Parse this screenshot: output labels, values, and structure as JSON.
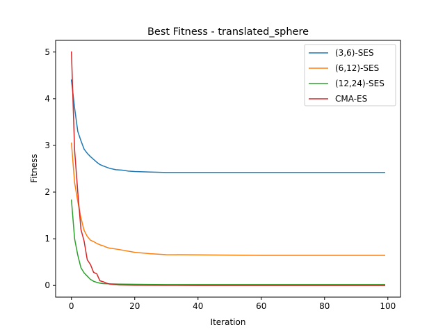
{
  "chart_data": {
    "type": "line",
    "title": "Best Fitness - translated_sphere",
    "xlabel": "Iteration",
    "ylabel": "Fitness",
    "xlim": [
      -5,
      104
    ],
    "ylim": [
      -0.25,
      5.25
    ],
    "xticks": [
      0,
      20,
      40,
      60,
      80,
      100
    ],
    "yticks": [
      0,
      1,
      2,
      3,
      4,
      5
    ],
    "grid": false,
    "legend_position": "top-right",
    "series": [
      {
        "name": "(3,6)-SES",
        "color": "#1f77b4",
        "x": [
          0,
          1,
          2,
          3,
          4,
          5,
          6,
          7,
          8,
          9,
          10,
          12,
          14,
          16,
          18,
          20,
          25,
          30,
          40,
          50,
          60,
          70,
          80,
          90,
          99
        ],
        "y": [
          4.4,
          3.8,
          3.3,
          3.1,
          2.92,
          2.83,
          2.76,
          2.7,
          2.64,
          2.59,
          2.56,
          2.51,
          2.48,
          2.47,
          2.45,
          2.44,
          2.43,
          2.42,
          2.42,
          2.42,
          2.42,
          2.42,
          2.42,
          2.42,
          2.42
        ]
      },
      {
        "name": "(6,12)-SES",
        "color": "#ff7f0e",
        "x": [
          0,
          1,
          2,
          3,
          4,
          5,
          6,
          7,
          8,
          9,
          10,
          11,
          12,
          15,
          20,
          25,
          30,
          40,
          50,
          60,
          70,
          80,
          90,
          99
        ],
        "y": [
          3.05,
          2.2,
          1.8,
          1.45,
          1.18,
          1.05,
          0.97,
          0.94,
          0.9,
          0.87,
          0.85,
          0.82,
          0.8,
          0.77,
          0.71,
          0.68,
          0.66,
          0.655,
          0.65,
          0.645,
          0.645,
          0.645,
          0.645,
          0.645
        ]
      },
      {
        "name": "(12,24)-SES",
        "color": "#2ca02c",
        "x": [
          0,
          1,
          2,
          3,
          4,
          5,
          6,
          7,
          8,
          9,
          10,
          12,
          15,
          20,
          30,
          40,
          60,
          80,
          99
        ],
        "y": [
          1.83,
          1.0,
          0.65,
          0.38,
          0.27,
          0.2,
          0.13,
          0.09,
          0.065,
          0.05,
          0.04,
          0.035,
          0.03,
          0.025,
          0.02,
          0.02,
          0.02,
          0.02,
          0.02
        ]
      },
      {
        "name": "CMA-ES",
        "color": "#d62728",
        "x": [
          0,
          1,
          2,
          3,
          4,
          5,
          6,
          7,
          8,
          9,
          10,
          11,
          12,
          13,
          15,
          20,
          30,
          40,
          60,
          80,
          99
        ],
        "y": [
          5.0,
          2.9,
          2.0,
          1.2,
          0.95,
          0.55,
          0.45,
          0.28,
          0.25,
          0.1,
          0.08,
          0.05,
          0.03,
          0.02,
          0.01,
          0.005,
          0.003,
          0.002,
          0.001,
          0.001,
          0.001
        ]
      }
    ]
  }
}
